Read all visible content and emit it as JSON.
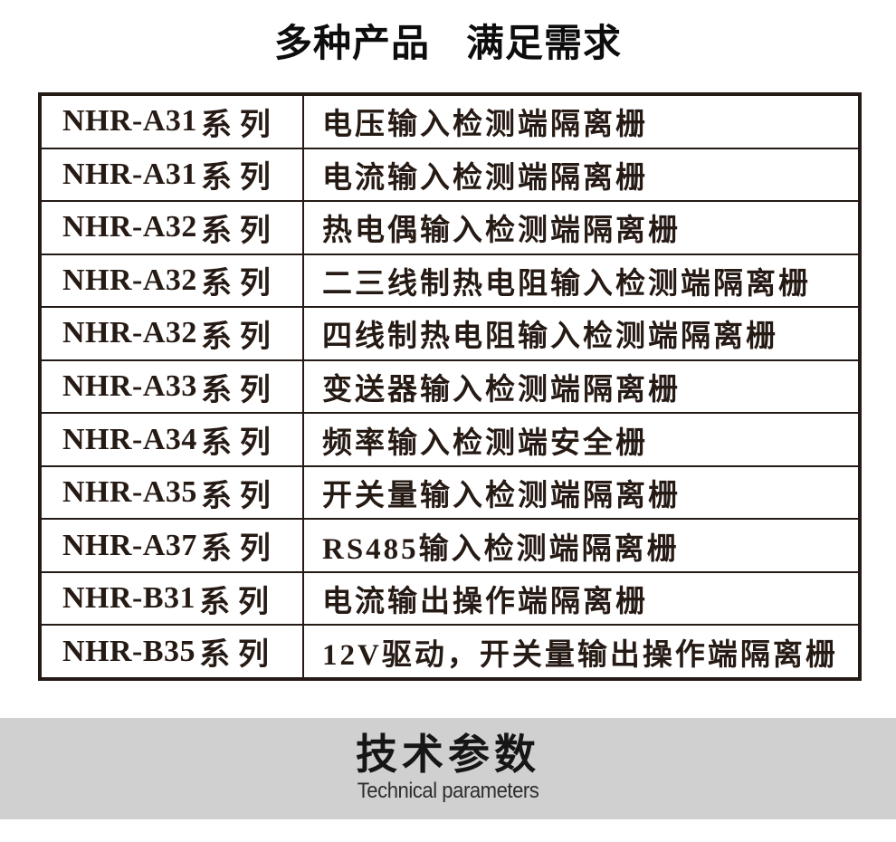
{
  "header": {
    "title_part1": "多种产品",
    "title_part2": "满足需求"
  },
  "product_table": {
    "rows": [
      {
        "model": "NHR-A31",
        "suffix": "系列",
        "description": "电压输入检测端隔离栅"
      },
      {
        "model": "NHR-A31",
        "suffix": "系列",
        "description": "电流输入检测端隔离栅"
      },
      {
        "model": "NHR-A32",
        "suffix": "系列",
        "description": "热电偶输入检测端隔离栅"
      },
      {
        "model": "NHR-A32",
        "suffix": "系列",
        "description": "二三线制热电阻输入检测端隔离栅"
      },
      {
        "model": "NHR-A32",
        "suffix": "系列",
        "description": "四线制热电阻输入检测端隔离栅"
      },
      {
        "model": "NHR-A33",
        "suffix": "系列",
        "description": "变送器输入检测端隔离栅"
      },
      {
        "model": "NHR-A34",
        "suffix": "系列",
        "description": "频率输入检测端安全栅"
      },
      {
        "model": "NHR-A35",
        "suffix": "系列",
        "description": "开关量输入检测端隔离栅"
      },
      {
        "model": "NHR-A37",
        "suffix": "系列",
        "description": "RS485输入检测端隔离栅"
      },
      {
        "model": "NHR-B31",
        "suffix": "系列",
        "description": "电流输出操作端隔离栅"
      },
      {
        "model": "NHR-B35",
        "suffix": "系列",
        "description": "12V驱动，开关量输出操作端隔离栅"
      }
    ]
  },
  "section_banner": {
    "title": "技术参数",
    "subtitle": "Technical parameters",
    "background_color": "#d1d0d1"
  },
  "colors": {
    "text_ink": "#261a14",
    "table_border": "#241a16",
    "title_ink": "#0d0d0d"
  }
}
